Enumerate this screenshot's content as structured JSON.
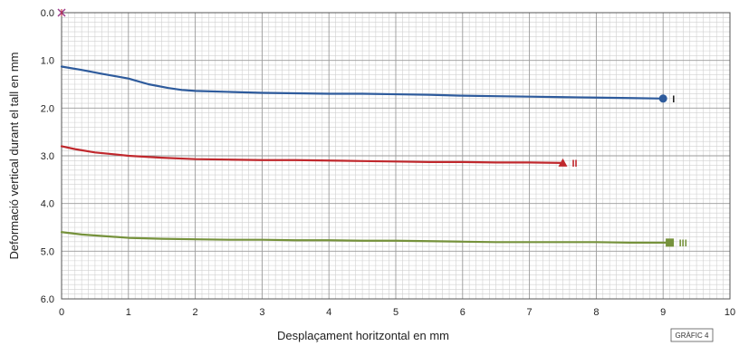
{
  "chart_data": {
    "type": "line",
    "xlabel": "Desplaçament horitzontal en mm",
    "ylabel": "Deformació vertical durant el tall en mm",
    "xlim": [
      0,
      10
    ],
    "ylim": [
      0,
      6
    ],
    "y_inverted": true,
    "grid": true,
    "x_ticks": [
      "0",
      "1",
      "2",
      "3",
      "4",
      "5",
      "6",
      "7",
      "8",
      "9",
      "10"
    ],
    "y_ticks": [
      "0.0",
      "1.0",
      "2.0",
      "3.0",
      "4.0",
      "5.0",
      "6.0"
    ],
    "origin_marker": {
      "x": 0,
      "y": 0,
      "color": "#9b3b8c"
    },
    "series": [
      {
        "name": "I",
        "color": "#2e5b9c",
        "marker": "circle",
        "x": [
          0,
          0.3,
          0.6,
          0.8,
          1.0,
          1.1,
          1.3,
          1.6,
          1.8,
          2.0,
          2.5,
          3.0,
          3.5,
          4.0,
          4.5,
          5.0,
          5.5,
          6.0,
          6.5,
          7.0,
          7.5,
          8.0,
          8.5,
          9.0
        ],
        "y": [
          1.13,
          1.2,
          1.28,
          1.33,
          1.38,
          1.42,
          1.5,
          1.58,
          1.62,
          1.64,
          1.66,
          1.68,
          1.69,
          1.7,
          1.7,
          1.71,
          1.72,
          1.74,
          1.75,
          1.76,
          1.77,
          1.78,
          1.79,
          1.8
        ]
      },
      {
        "name": "II",
        "color": "#c0282d",
        "marker": "triangle",
        "x": [
          0,
          0.2,
          0.5,
          0.8,
          1.0,
          1.5,
          2.0,
          2.5,
          3.0,
          3.5,
          4.0,
          4.5,
          5.0,
          5.5,
          6.0,
          6.5,
          7.0,
          7.5
        ],
        "y": [
          2.8,
          2.86,
          2.93,
          2.97,
          3.0,
          3.04,
          3.07,
          3.08,
          3.09,
          3.09,
          3.1,
          3.11,
          3.12,
          3.13,
          3.13,
          3.14,
          3.14,
          3.15
        ]
      },
      {
        "name": "III",
        "color": "#76923c",
        "marker": "square",
        "x": [
          0,
          0.3,
          0.6,
          1.0,
          1.5,
          2.0,
          2.5,
          3.0,
          3.5,
          4.0,
          4.5,
          5.0,
          5.5,
          6.0,
          6.5,
          7.0,
          7.5,
          8.0,
          8.5,
          9.0,
          9.1
        ],
        "y": [
          4.6,
          4.65,
          4.68,
          4.72,
          4.74,
          4.75,
          4.76,
          4.76,
          4.77,
          4.77,
          4.78,
          4.78,
          4.79,
          4.8,
          4.81,
          4.81,
          4.81,
          4.81,
          4.82,
          4.82,
          4.82
        ]
      }
    ],
    "badge": "GRÀFIC 4"
  }
}
